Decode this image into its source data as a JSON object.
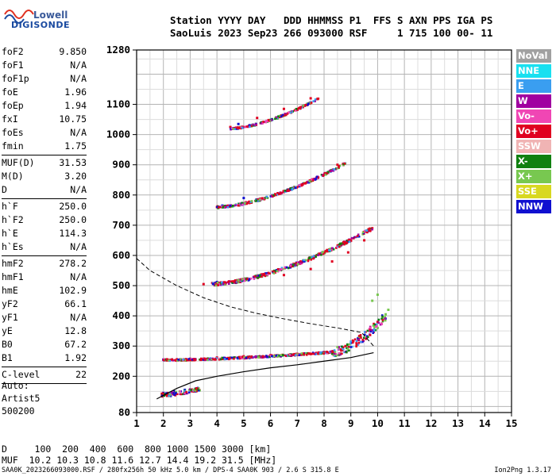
{
  "logo": {
    "line1": "Lowell",
    "line2": "DIGISONDE"
  },
  "header": {
    "line1": "Station YYYY DAY   DDD HHMMSS P1  FFS S AXN PPS IGA PS",
    "line2": "SaoLuis 2023 Sep23 266 093000 RSF     1 715 100 00- 11"
  },
  "params": {
    "group1": [
      {
        "k": "foF2",
        "v": "9.850"
      },
      {
        "k": "foF1",
        "v": "N/A"
      },
      {
        "k": "foF1p",
        "v": "N/A"
      },
      {
        "k": "foE",
        "v": "1.96"
      },
      {
        "k": "foEp",
        "v": "1.94"
      },
      {
        "k": "fxI",
        "v": "10.75"
      },
      {
        "k": "foEs",
        "v": "N/A"
      },
      {
        "k": "fmin",
        "v": "1.75"
      }
    ],
    "group2": [
      {
        "k": "MUF(D)",
        "v": "31.53"
      },
      {
        "k": "M(D)",
        "v": "3.20"
      },
      {
        "k": "D",
        "v": "N/A"
      }
    ],
    "group3": [
      {
        "k": "h`F",
        "v": "250.0"
      },
      {
        "k": "h`F2",
        "v": "250.0"
      },
      {
        "k": "h`E",
        "v": "114.3"
      },
      {
        "k": "h`Es",
        "v": "N/A"
      }
    ],
    "group4": [
      {
        "k": "hmF2",
        "v": "278.2"
      },
      {
        "k": "hmF1",
        "v": "N/A"
      },
      {
        "k": "hmE",
        "v": "102.9"
      },
      {
        "k": "yF2",
        "v": "66.1"
      },
      {
        "k": "yF1",
        "v": "N/A"
      },
      {
        "k": "yE",
        "v": "12.8"
      },
      {
        "k": "B0",
        "v": "67.2"
      },
      {
        "k": "B1",
        "v": "1.92"
      }
    ],
    "group5": [
      {
        "k": "C-level",
        "v": "22"
      }
    ]
  },
  "auto": {
    "line1": "Auto:",
    "line2": "Artist5",
    "line3": "500200"
  },
  "legend": [
    {
      "label": "NoVal",
      "color": "#a0a0a0"
    },
    {
      "label": "NNE",
      "color": "#19e0f0"
    },
    {
      "label": "E",
      "color": "#3a9ef0"
    },
    {
      "label": "W",
      "color": "#a000a0"
    },
    {
      "label": "Vo-",
      "color": "#f046b4"
    },
    {
      "label": "Vo+",
      "color": "#e00020"
    },
    {
      "label": "SSW",
      "color": "#f0b4b4"
    },
    {
      "label": "X-",
      "color": "#108010"
    },
    {
      "label": "X+",
      "color": "#78c850"
    },
    {
      "label": "SSE",
      "color": "#d8d820"
    },
    {
      "label": "NNW",
      "color": "#1010d0"
    }
  ],
  "bottom": {
    "line1": "D     100  200  400  600  800 1000 1500 3000 [km]",
    "line2": "MUF  10.2 10.3 10.8 11.6 12.7 14.4 19.2 31.5 [MHz]"
  },
  "footer": {
    "left": "SAA0K_2023266093000.RSF / 280fx256h 50 kHz 5.0 km / DPS-4 SAA0K 903 / 2.6 S 315.8 E",
    "right": "Ion2Png 1.3.17"
  },
  "chart_data": {
    "type": "scatter",
    "x_ticks": [
      "1",
      "2",
      "3",
      "4",
      "5",
      "6",
      "7",
      "8",
      "9",
      "10",
      "11",
      "12",
      "13",
      "14",
      "15"
    ],
    "y_ticks": [
      "80",
      "200",
      "300",
      "400",
      "500",
      "600",
      "700",
      "800",
      "900",
      "1000",
      "1100",
      "1280"
    ],
    "xlim": [
      1,
      15
    ],
    "ylim": [
      80,
      1280
    ],
    "grid": true,
    "series": [
      {
        "name": "Vo+",
        "color": "#e00020",
        "points": [
          [
            2.0,
            255
          ],
          [
            3.0,
            258
          ],
          [
            4.0,
            262
          ],
          [
            5.0,
            266
          ],
          [
            6.0,
            270
          ],
          [
            7.0,
            274
          ],
          [
            8.0,
            280
          ],
          [
            8.8,
            300
          ],
          [
            9.3,
            320
          ],
          [
            9.7,
            350
          ],
          [
            10.0,
            380
          ],
          [
            3.5,
            505
          ],
          [
            5.0,
            520
          ],
          [
            6.5,
            535
          ],
          [
            7.5,
            555
          ],
          [
            8.3,
            580
          ],
          [
            8.9,
            610
          ],
          [
            9.5,
            650
          ],
          [
            9.8,
            690
          ],
          [
            4.0,
            760
          ],
          [
            5.5,
            785
          ],
          [
            6.5,
            810
          ],
          [
            7.5,
            845
          ],
          [
            8.5,
            900
          ],
          [
            4.5,
            1025
          ],
          [
            5.5,
            1055
          ],
          [
            6.5,
            1085
          ],
          [
            7.5,
            1120
          ]
        ]
      },
      {
        "name": "NNW",
        "color": "#1010d0",
        "points": [
          [
            2.0,
            145
          ],
          [
            2.4,
            150
          ],
          [
            2.8,
            155
          ],
          [
            3.2,
            150
          ],
          [
            2.0,
            255
          ],
          [
            3.5,
            258
          ],
          [
            4.0,
            512
          ],
          [
            5.2,
            522
          ],
          [
            4.2,
            765
          ],
          [
            5.0,
            790
          ],
          [
            4.8,
            1035
          ]
        ]
      },
      {
        "name": "X+",
        "color": "#78c850",
        "points": [
          [
            9.6,
            330
          ],
          [
            10.0,
            360
          ],
          [
            10.2,
            390
          ],
          [
            10.4,
            420
          ],
          [
            10.0,
            470
          ],
          [
            9.8,
            450
          ],
          [
            10.3,
            405
          ]
        ]
      }
    ],
    "virtual_height_trace": [
      [
        1.75,
        125
      ],
      [
        2.5,
        160
      ],
      [
        3.2,
        185
      ],
      [
        4,
        200
      ],
      [
        5,
        215
      ],
      [
        6,
        228
      ],
      [
        7,
        238
      ],
      [
        8,
        250
      ],
      [
        9,
        262
      ],
      [
        9.85,
        278
      ]
    ],
    "profile_dashed": [
      [
        1,
        590
      ],
      [
        1.5,
        550
      ],
      [
        2.5,
        500
      ],
      [
        3.5,
        460
      ],
      [
        4.5,
        430
      ],
      [
        5.5,
        408
      ],
      [
        6.5,
        390
      ],
      [
        7.5,
        374
      ],
      [
        8.5,
        360
      ],
      [
        9.4,
        345
      ],
      [
        9.85,
        300
      ]
    ]
  }
}
